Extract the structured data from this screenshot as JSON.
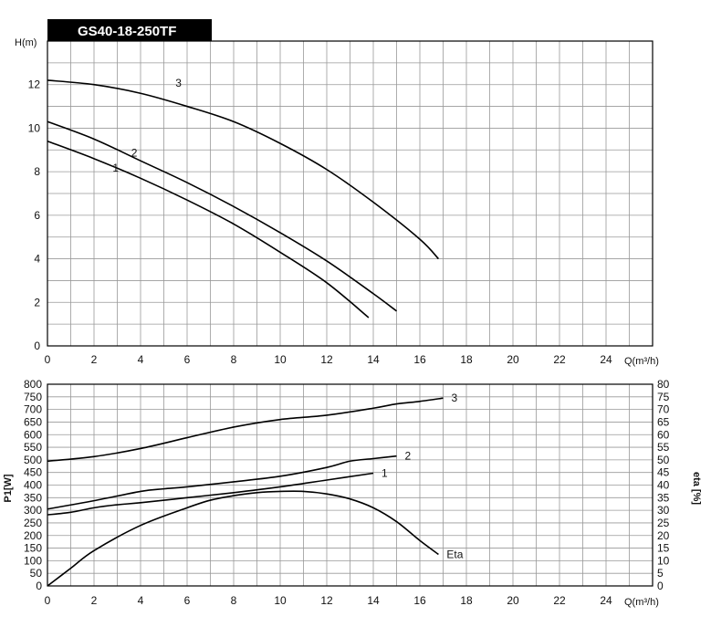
{
  "title": "GS40-18-250TF",
  "colors": {
    "background": "#ffffff",
    "title_bg": "#000000",
    "title_fg": "#ffffff",
    "grid": "#999999",
    "curve": "#000000"
  },
  "chart_data": [
    {
      "type": "line",
      "title": "",
      "ylabel": "H(m)",
      "xlabel": "Q(m³/h)",
      "xlim": [
        0,
        26
      ],
      "ylim": [
        0,
        14
      ],
      "xticks": [
        0,
        2,
        4,
        6,
        8,
        10,
        12,
        14,
        16,
        18,
        20,
        22,
        24
      ],
      "yticks": [
        0,
        2,
        4,
        6,
        8,
        10,
        12
      ],
      "grid": true,
      "series": [
        {
          "name": "1",
          "points": [
            [
              0,
              9.4
            ],
            [
              2,
              8.6
            ],
            [
              4,
              7.7
            ],
            [
              6,
              6.7
            ],
            [
              8,
              5.6
            ],
            [
              10,
              4.3
            ],
            [
              12,
              2.9
            ],
            [
              13.8,
              1.3
            ]
          ]
        },
        {
          "name": "2",
          "points": [
            [
              0,
              10.3
            ],
            [
              2,
              9.5
            ],
            [
              4,
              8.5
            ],
            [
              6,
              7.5
            ],
            [
              8,
              6.4
            ],
            [
              10,
              5.2
            ],
            [
              12,
              3.9
            ],
            [
              14,
              2.4
            ],
            [
              15,
              1.6
            ]
          ]
        },
        {
          "name": "3",
          "points": [
            [
              0,
              12.2
            ],
            [
              2,
              12.0
            ],
            [
              4,
              11.6
            ],
            [
              6,
              11.0
            ],
            [
              8,
              10.3
            ],
            [
              10,
              9.3
            ],
            [
              12,
              8.1
            ],
            [
              14,
              6.6
            ],
            [
              16,
              4.9
            ],
            [
              16.8,
              4.0
            ]
          ]
        }
      ]
    },
    {
      "type": "line",
      "title": "",
      "ylabel": "P1[W]",
      "y2label": "eta  [%]",
      "xlabel": "Q(m³/h)",
      "xlim": [
        0,
        26
      ],
      "ylim": [
        0,
        800
      ],
      "y2lim": [
        0,
        80
      ],
      "xticks": [
        0,
        2,
        4,
        6,
        8,
        10,
        12,
        14,
        16,
        18,
        20,
        22,
        24
      ],
      "yticks": [
        0,
        50,
        100,
        150,
        200,
        250,
        300,
        350,
        400,
        450,
        500,
        550,
        600,
        650,
        700,
        750,
        800
      ],
      "y2ticks": [
        0,
        5,
        10,
        15,
        20,
        25,
        30,
        35,
        40,
        45,
        50,
        55,
        60,
        65,
        70,
        75,
        80
      ],
      "grid": true,
      "series": [
        {
          "name": "1",
          "axis": "left",
          "points": [
            [
              0,
              282
            ],
            [
              1,
              292
            ],
            [
              2,
              310
            ],
            [
              3,
              322
            ],
            [
              4,
              330
            ],
            [
              6,
              350
            ],
            [
              8,
              370
            ],
            [
              10,
              393
            ],
            [
              12,
              420
            ],
            [
              14,
              447
            ]
          ]
        },
        {
          "name": "2",
          "axis": "left",
          "points": [
            [
              0,
              305
            ],
            [
              2,
              338
            ],
            [
              4,
              375
            ],
            [
              5,
              385
            ],
            [
              6,
              393
            ],
            [
              8,
              413
            ],
            [
              10,
              435
            ],
            [
              12,
              470
            ],
            [
              13,
              495
            ],
            [
              14,
              505
            ],
            [
              15,
              515
            ]
          ]
        },
        {
          "name": "3",
          "axis": "left",
          "points": [
            [
              0,
              495
            ],
            [
              2,
              513
            ],
            [
              4,
              545
            ],
            [
              6,
              588
            ],
            [
              8,
              630
            ],
            [
              10,
              660
            ],
            [
              12,
              677
            ],
            [
              14,
              705
            ],
            [
              15,
              722
            ],
            [
              16,
              732
            ],
            [
              17,
              745
            ]
          ]
        },
        {
          "name": "Eta",
          "axis": "right",
          "points": [
            [
              0,
              0
            ],
            [
              1,
              7
            ],
            [
              2,
              14
            ],
            [
              4,
              24
            ],
            [
              6,
              31
            ],
            [
              7,
              34
            ],
            [
              8,
              35.8
            ],
            [
              9,
              37
            ],
            [
              10,
              37.5
            ],
            [
              11,
              37.5
            ],
            [
              12,
              36.5
            ],
            [
              13,
              34.5
            ],
            [
              14,
              31
            ],
            [
              15,
              25.5
            ],
            [
              16,
              18
            ],
            [
              16.8,
              12.5
            ]
          ]
        }
      ]
    }
  ]
}
